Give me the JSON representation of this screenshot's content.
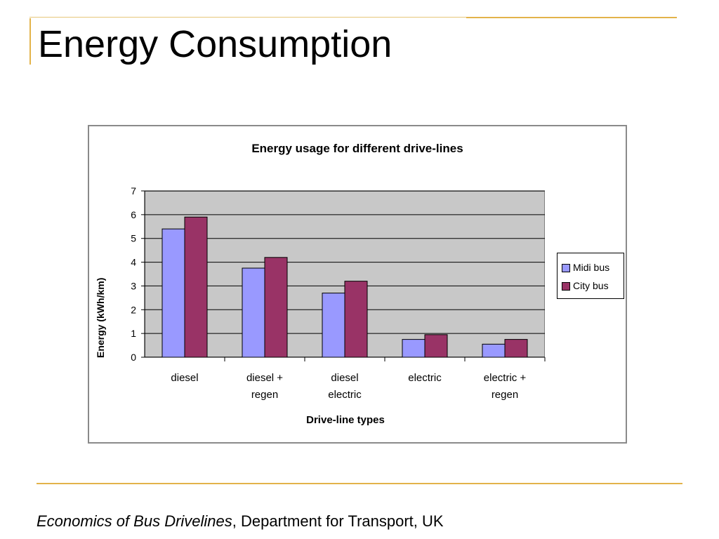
{
  "slide": {
    "title": "Energy Consumption",
    "caption_italic": "Economics of Bus Drivelines",
    "caption_rest": ", Department for Transport, UK"
  },
  "colors": {
    "accent": "#e3b34a",
    "midi_bus": "#9999ff",
    "city_bus": "#993366",
    "plot_bg": "#c8c8c8"
  },
  "chart_data": {
    "type": "bar",
    "title": "Energy usage for different drive-lines",
    "xlabel": "Drive-line types",
    "ylabel": "Energy (kWh/km)",
    "categories": [
      [
        "diesel"
      ],
      [
        "diesel +",
        "regen"
      ],
      [
        "diesel",
        "electric"
      ],
      [
        "electric"
      ],
      [
        "electric +",
        "regen"
      ]
    ],
    "series": [
      {
        "name": "Midi bus",
        "values": [
          5.4,
          3.75,
          2.7,
          0.75,
          0.55
        ]
      },
      {
        "name": "City bus",
        "values": [
          5.9,
          4.2,
          3.2,
          0.95,
          0.75
        ]
      }
    ],
    "ylim": [
      0,
      7
    ],
    "yticks": [
      0,
      1,
      2,
      3,
      4,
      5,
      6,
      7
    ],
    "grid": true,
    "legend": "right"
  }
}
